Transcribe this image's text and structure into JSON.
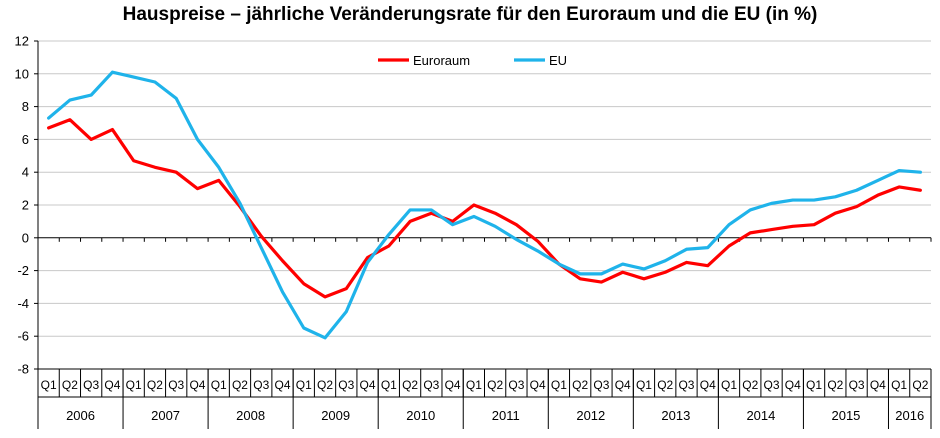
{
  "chart_data": {
    "type": "line",
    "title": "Hauspreise – jährliche Veränderungsrate für den Euroraum und die EU (in %)",
    "xlabel": "",
    "ylabel": "",
    "ylim": [
      -8,
      12
    ],
    "yticks": [
      12,
      10,
      8,
      6,
      4,
      2,
      0,
      -2,
      -4,
      -6,
      -8
    ],
    "quarter_labels": [
      "Q1",
      "Q2",
      "Q3",
      "Q4",
      "Q1",
      "Q2",
      "Q3",
      "Q4",
      "Q1",
      "Q2",
      "Q3",
      "Q4",
      "Q1",
      "Q2",
      "Q3",
      "Q4",
      "Q1",
      "Q2",
      "Q3",
      "Q4",
      "Q1",
      "Q2",
      "Q3",
      "Q4",
      "Q1",
      "Q2",
      "Q3",
      "Q4",
      "Q1",
      "Q2",
      "Q3",
      "Q4",
      "Q1",
      "Q2",
      "Q3",
      "Q4",
      "Q1",
      "Q2",
      "Q3",
      "Q4",
      "Q1",
      "Q2"
    ],
    "years": [
      {
        "label": "2006",
        "quarters": 4
      },
      {
        "label": "2007",
        "quarters": 4
      },
      {
        "label": "2008",
        "quarters": 4
      },
      {
        "label": "2009",
        "quarters": 4
      },
      {
        "label": "2010",
        "quarters": 4
      },
      {
        "label": "2011",
        "quarters": 4
      },
      {
        "label": "2012",
        "quarters": 4
      },
      {
        "label": "2013",
        "quarters": 4
      },
      {
        "label": "2014",
        "quarters": 4
      },
      {
        "label": "2015",
        "quarters": 4
      },
      {
        "label": "2016",
        "quarters": 2
      }
    ],
    "grid": "horizontal",
    "legend_position": "top-center",
    "series": [
      {
        "name": "Euroraum",
        "color": "#ff0000",
        "values": [
          6.7,
          7.2,
          6.0,
          6.6,
          4.7,
          4.3,
          4.0,
          3.0,
          3.5,
          1.9,
          0.1,
          -1.4,
          -2.8,
          -3.6,
          -3.1,
          -1.2,
          -0.5,
          1.0,
          1.5,
          1.0,
          2.0,
          1.5,
          0.8,
          -0.2,
          -1.6,
          -2.5,
          -2.7,
          -2.1,
          -2.5,
          -2.1,
          -1.5,
          -1.7,
          -0.5,
          0.3,
          0.5,
          0.7,
          0.8,
          1.5,
          1.9,
          2.6,
          3.1,
          2.9
        ]
      },
      {
        "name": "EU",
        "color": "#1fb3ea",
        "values": [
          7.3,
          8.4,
          8.7,
          10.1,
          9.8,
          9.5,
          8.5,
          6.0,
          4.3,
          2.1,
          -0.6,
          -3.3,
          -5.5,
          -6.1,
          -4.5,
          -1.5,
          0.2,
          1.7,
          1.7,
          0.8,
          1.3,
          0.7,
          -0.1,
          -0.8,
          -1.6,
          -2.2,
          -2.2,
          -1.6,
          -1.9,
          -1.4,
          -0.7,
          -0.6,
          0.8,
          1.7,
          2.1,
          2.3,
          2.3,
          2.5,
          2.9,
          3.5,
          4.1,
          4.0
        ]
      }
    ]
  }
}
